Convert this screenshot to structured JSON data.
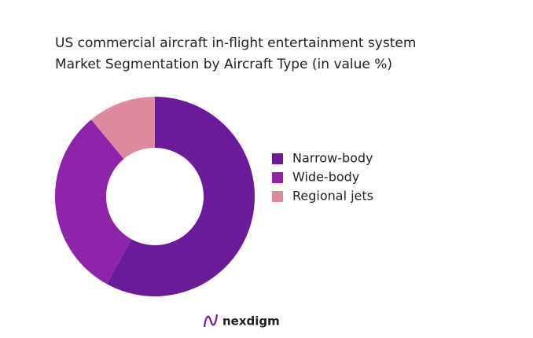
{
  "chart_data": {
    "type": "donut",
    "title": "US commercial aircraft in-flight entertainment system",
    "subtitle": "Market Segmentation by Aircraft Type (in value %)",
    "categories": [
      "Narrow-body",
      "Wide-body",
      "Regional jets"
    ],
    "values": [
      58,
      31,
      11
    ],
    "colors": [
      "#6a1b9a",
      "#8e24aa",
      "#de8a9e"
    ]
  },
  "brand": "nexdigm"
}
